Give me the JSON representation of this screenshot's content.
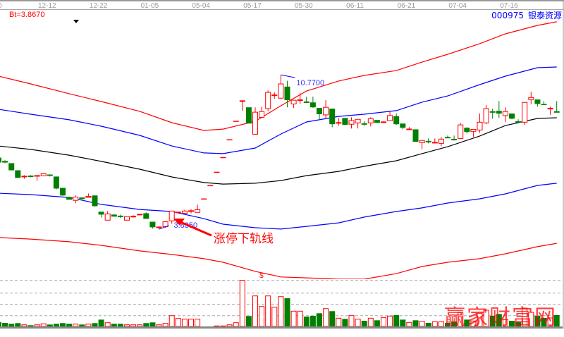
{
  "header": {
    "indicator_label": "Bt=3.8670",
    "stock_code": "000975",
    "stock_name": "银泰资源"
  },
  "colors": {
    "up": "#ff0000",
    "down": "#008000",
    "upper_outer_band": "#ff0000",
    "upper_inner_band": "#0000ff",
    "middle_band": "#000000",
    "lower_inner_band": "#0000ff",
    "lower_outer_band": "#ff0000",
    "axis_text": "#999999",
    "label_blue": "#3333ff"
  },
  "watermark": "赢家财富网",
  "chart_data": {
    "type": "candlestick",
    "x_ticks": [
      {
        "label": "0",
        "index": 0
      },
      {
        "label": "12-12",
        "index": 8
      },
      {
        "label": "12-22",
        "index": 16
      },
      {
        "label": "01-05",
        "index": 24
      },
      {
        "label": "05-04",
        "index": 32
      },
      {
        "label": "05-17",
        "index": 40
      },
      {
        "label": "05-30",
        "index": 48
      },
      {
        "label": "06-11",
        "index": 56
      },
      {
        "label": "06-21",
        "index": 64
      },
      {
        "label": "07-04",
        "index": 72
      },
      {
        "label": "07-16",
        "index": 80
      }
    ],
    "candle_fields": [
      "open",
      "high",
      "low",
      "close"
    ],
    "candles": [
      [
        7.05,
        7.08,
        6.8,
        6.83
      ],
      [
        6.9,
        6.93,
        6.8,
        6.83
      ],
      [
        6.8,
        6.8,
        6.48,
        6.48
      ],
      [
        6.48,
        6.48,
        6.14,
        6.14
      ],
      [
        6.18,
        6.26,
        6.1,
        6.2
      ],
      [
        6.21,
        6.26,
        6.17,
        6.2
      ],
      [
        6.22,
        6.23,
        6.01,
        6.23
      ],
      [
        6.23,
        6.36,
        6.23,
        6.33
      ],
      [
        6.29,
        6.3,
        6.2,
        6.23
      ],
      [
        6.2,
        6.2,
        5.63,
        5.66
      ],
      [
        5.69,
        5.69,
        5.32,
        5.35
      ],
      [
        5.28,
        5.3,
        5.16,
        5.16
      ],
      [
        5.13,
        5.35,
        5.0,
        5.28
      ],
      [
        5.26,
        5.26,
        5.13,
        5.19
      ],
      [
        5.26,
        5.44,
        5.26,
        5.31
      ],
      [
        5.35,
        5.35,
        4.84,
        4.87
      ],
      [
        4.62,
        4.62,
        4.36,
        4.49
      ],
      [
        4.24,
        4.65,
        4.24,
        4.52
      ],
      [
        4.49,
        4.52,
        4.4,
        4.4
      ],
      [
        4.41,
        4.49,
        4.33,
        4.4
      ],
      [
        4.24,
        4.4,
        4.24,
        4.4
      ],
      [
        4.39,
        4.46,
        4.36,
        4.4
      ],
      [
        4.46,
        4.49,
        4.46,
        4.49
      ],
      [
        4.55,
        4.59,
        4.3,
        4.3
      ],
      [
        4.17,
        4.17,
        3.86,
        3.92
      ],
      [
        3.89,
        3.92,
        3.835,
        3.92
      ],
      [
        3.95,
        4.17,
        3.89,
        4.17
      ],
      [
        4.21,
        4.65,
        4.08,
        4.65
      ],
      [
        4.55,
        4.59,
        4.55,
        4.59
      ],
      [
        4.55,
        4.71,
        4.55,
        4.65
      ],
      [
        4.64,
        4.74,
        4.55,
        4.65
      ],
      [
        4.59,
        4.94,
        4.59,
        4.71
      ],
      [
        5.19,
        5.19,
        5.19,
        5.19
      ],
      [
        5.79,
        5.79,
        5.79,
        5.79
      ],
      [
        6.39,
        6.39,
        6.39,
        6.39
      ],
      [
        7.05,
        7.05,
        7.05,
        7.05
      ],
      [
        7.85,
        7.85,
        7.85,
        7.85
      ],
      [
        8.68,
        8.68,
        8.68,
        8.68
      ],
      [
        9.59,
        9.59,
        9.15,
        9.59
      ],
      [
        9.31,
        9.31,
        8.58,
        8.58
      ],
      [
        8.1,
        9.31,
        8.1,
        9.09
      ],
      [
        8.86,
        9.34,
        8.86,
        9.12
      ],
      [
        9.25,
        10.07,
        9.15,
        9.98
      ],
      [
        9.84,
        9.98,
        9.69,
        9.85
      ],
      [
        9.72,
        10.77,
        9.72,
        10.36
      ],
      [
        10.24,
        10.5,
        9.31,
        9.63
      ],
      [
        9.46,
        9.63,
        9.28,
        9.63
      ],
      [
        9.62,
        9.95,
        9.46,
        9.63
      ],
      [
        9.54,
        9.79,
        9.5,
        9.53
      ],
      [
        9.53,
        9.79,
        9.28,
        9.31
      ],
      [
        9.28,
        9.28,
        8.77,
        9.0
      ],
      [
        8.97,
        9.63,
        8.83,
        9.31
      ],
      [
        9.25,
        9.25,
        8.42,
        8.55
      ],
      [
        8.6,
        8.83,
        8.48,
        8.61
      ],
      [
        8.83,
        8.83,
        8.52,
        8.52
      ],
      [
        8.55,
        8.86,
        8.36,
        8.71
      ],
      [
        8.61,
        8.77,
        8.36,
        8.77
      ],
      [
        8.56,
        8.68,
        8.48,
        8.55
      ],
      [
        8.61,
        8.86,
        8.45,
        8.8
      ],
      [
        8.74,
        8.74,
        8.61,
        8.61
      ],
      [
        8.63,
        8.68,
        8.61,
        8.64
      ],
      [
        8.71,
        9.12,
        8.71,
        8.94
      ],
      [
        8.91,
        9.03,
        8.52,
        8.55
      ],
      [
        8.58,
        8.58,
        8.32,
        8.39
      ],
      [
        8.31,
        8.42,
        8.32,
        8.32
      ],
      [
        8.32,
        8.32,
        7.76,
        7.76
      ],
      [
        7.72,
        7.82,
        7.43,
        7.82
      ],
      [
        7.77,
        7.91,
        7.69,
        7.76
      ],
      [
        7.71,
        7.91,
        7.69,
        7.72
      ],
      [
        7.69,
        7.98,
        7.56,
        7.88
      ],
      [
        7.95,
        8.04,
        7.94,
        7.94
      ],
      [
        7.86,
        8.04,
        7.82,
        7.85
      ],
      [
        7.91,
        8.61,
        7.88,
        8.52
      ],
      [
        8.39,
        8.42,
        8.13,
        8.2
      ],
      [
        8.23,
        8.32,
        7.98,
        8.32
      ],
      [
        8.29,
        9.03,
        8.16,
        8.64
      ],
      [
        8.61,
        9.41,
        8.55,
        9.25
      ],
      [
        9.1,
        9.25,
        8.8,
        9.09
      ],
      [
        9.15,
        9.59,
        8.83,
        9.03
      ],
      [
        8.94,
        9.31,
        8.64,
        9.12
      ],
      [
        9.03,
        9.03,
        8.77,
        8.8
      ],
      [
        8.65,
        8.77,
        8.64,
        8.64
      ],
      [
        8.64,
        9.53,
        8.52,
        9.53
      ],
      [
        9.66,
        10.01,
        9.44,
        9.75
      ],
      [
        9.66,
        9.66,
        9.34,
        9.46
      ],
      [
        9.46,
        9.59,
        9.41,
        9.41
      ],
      [
        9.24,
        9.34,
        8.97,
        9.25
      ],
      [
        9.1,
        9.59,
        9.09,
        9.09
      ]
    ],
    "volume": [
      9.2,
      7.7,
      5.7,
      7.2,
      3.5,
      2.6,
      3.5,
      5.7,
      4.1,
      5.7,
      7.2,
      5.7,
      5.0,
      4.1,
      5.0,
      7.2,
      14.8,
      8.1,
      5.7,
      5.7,
      3.5,
      3.5,
      3.5,
      7.2,
      8.7,
      3.5,
      6.6,
      23.4,
      17.3,
      15.8,
      15.8,
      15.8,
      0,
      0,
      1.1,
      1.1,
      3.5,
      8.1,
      100,
      22.5,
      66.3,
      43.3,
      66.3,
      41.8,
      64.7,
      61.2,
      33.2,
      33.2,
      21.4,
      23,
      28.6,
      38.7,
      33.2,
      17.9,
      16.4,
      24,
      15.8,
      12.2,
      17.9,
      13.3,
      19.4,
      22.5,
      24.5,
      14.8,
      8.7,
      13.3,
      11.2,
      7.7,
      10.3,
      10.3,
      7.7,
      10.7,
      30.6,
      14.8,
      11.8,
      28.6,
      35.2,
      23,
      27.1,
      14.8,
      12.2,
      9.2,
      39.8,
      30.6,
      23,
      18.4,
      18.4,
      24.5
    ],
    "volume_gridlines": [
      100,
      72.4,
      48,
      23.4
    ],
    "band_sample_index": [
      0,
      5,
      11,
      16,
      22,
      27,
      32,
      35,
      40,
      44,
      48,
      53,
      57,
      62,
      66,
      70,
      75,
      79,
      84,
      87
    ],
    "bands": [
      {
        "key": "upper_outer_band",
        "values": [
          10.71,
          10.36,
          9.92,
          9.57,
          9.13,
          8.62,
          8.27,
          8.33,
          8.68,
          9.38,
          10.04,
          10.49,
          10.74,
          10.96,
          11.34,
          11.69,
          12.17,
          12.61,
          12.99,
          13.15
        ]
      },
      {
        "key": "upper_inner_band",
        "values": [
          9.22,
          9.0,
          8.75,
          8.46,
          8.05,
          7.57,
          7.26,
          7.23,
          7.48,
          8.11,
          8.65,
          8.9,
          9.0,
          9.16,
          9.54,
          9.82,
          10.33,
          10.71,
          11.09,
          11.12
        ]
      },
      {
        "key": "middle_band",
        "values": [
          7.57,
          7.42,
          7.16,
          6.88,
          6.53,
          6.18,
          5.93,
          5.86,
          5.9,
          6.02,
          6.24,
          6.43,
          6.66,
          6.91,
          7.23,
          7.54,
          8.02,
          8.49,
          8.81,
          8.84
        ]
      },
      {
        "key": "lower_inner_band",
        "values": [
          5.45,
          5.39,
          5.26,
          4.95,
          4.72,
          4.63,
          4.31,
          4.06,
          3.9,
          3.84,
          3.96,
          4.12,
          4.38,
          4.63,
          4.79,
          5.01,
          5.2,
          5.42,
          5.8,
          5.9
        ]
      },
      {
        "key": "lower_outer_band",
        "values": [
          3.46,
          3.39,
          3.27,
          3.11,
          2.86,
          2.7,
          2.51,
          2.35,
          1.94,
          1.69,
          1.65,
          1.59,
          1.59,
          1.84,
          2.16,
          2.35,
          2.51,
          2.73,
          3.05,
          3.2
        ]
      }
    ],
    "annotations": {
      "high_label": "10.7700",
      "high_value": 10.77,
      "high_index": 44,
      "low_label": "3.8350",
      "low_value": 3.835,
      "low_index": 25,
      "limit_note": "涨停下轨线",
      "marker": "$",
      "marker_index": 41
    }
  }
}
